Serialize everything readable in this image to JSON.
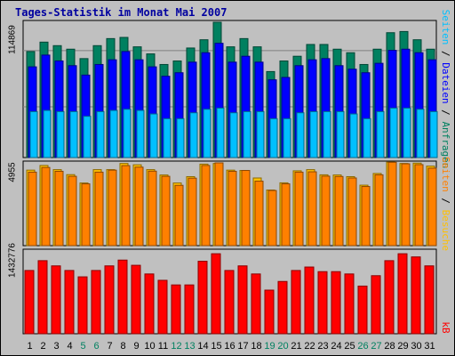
{
  "title": "Tages-Statistik im Monat Mai 2007",
  "colors": {
    "hits": "#008060",
    "files": "#0000ff",
    "pages": "#00c0ff",
    "visits": "#ffc000",
    "sites": "#ff8000",
    "kbytes": "#ff0000",
    "weekday_label": "#000000",
    "weekend_label": "#008060",
    "background": "#c0c0c0"
  },
  "legend_right": {
    "top": [
      {
        "text": "Seiten",
        "color": "#00c0ff"
      },
      {
        "text": " / ",
        "color": "#000000"
      },
      {
        "text": "Dateien",
        "color": "#0000ff"
      },
      {
        "text": " / ",
        "color": "#000000"
      },
      {
        "text": "Anfragen",
        "color": "#008060"
      }
    ],
    "middle": [
      {
        "text": "Seiten",
        "color": "#ff8000"
      },
      {
        "text": " / ",
        "color": "#000000"
      },
      {
        "text": "Besuche",
        "color": "#ffc000"
      }
    ],
    "bottom": [
      {
        "text": "kB",
        "color": "#ff0000"
      }
    ]
  },
  "chart_data": [
    {
      "type": "bar",
      "panel": "requests",
      "ymax_label": "114869",
      "ylim": [
        0,
        114869
      ],
      "categories": [
        "1",
        "2",
        "3",
        "4",
        "5",
        "6",
        "7",
        "8",
        "9",
        "10",
        "11",
        "12",
        "13",
        "14",
        "15",
        "16",
        "17",
        "18",
        "19",
        "20",
        "21",
        "22",
        "23",
        "24",
        "25",
        "26",
        "27",
        "28",
        "29",
        "30",
        "31"
      ],
      "weekend_days": [
        "5",
        "6",
        "12",
        "13",
        "19",
        "20",
        "26",
        "27"
      ],
      "series": [
        {
          "name": "Anfragen",
          "values": [
            90000,
            98000,
            95000,
            92000,
            84000,
            95000,
            101000,
            102000,
            94000,
            88000,
            79000,
            82000,
            93000,
            100000,
            114869,
            94000,
            101000,
            94000,
            73000,
            82000,
            86000,
            96000,
            96000,
            92000,
            89000,
            79000,
            92000,
            106000,
            107000,
            100000,
            92000
          ]
        },
        {
          "name": "Dateien",
          "values": [
            77000,
            87000,
            82000,
            78000,
            70000,
            79000,
            83000,
            90000,
            83000,
            77000,
            69000,
            72000,
            81000,
            89000,
            97000,
            81000,
            86000,
            81000,
            66000,
            68000,
            78000,
            83000,
            84000,
            78000,
            75000,
            72000,
            80000,
            91000,
            92000,
            89000,
            83000
          ]
        },
        {
          "name": "Seiten",
          "values": [
            39000,
            40000,
            39000,
            39000,
            35000,
            39000,
            40000,
            41000,
            40000,
            37000,
            33000,
            33000,
            38000,
            41000,
            42000,
            38000,
            39000,
            39000,
            33000,
            33000,
            38000,
            39000,
            39000,
            39000,
            37000,
            33000,
            39000,
            42000,
            42000,
            41000,
            39000
          ]
        }
      ]
    },
    {
      "type": "bar",
      "panel": "visits",
      "ymax_label": "4955",
      "ylim": [
        0,
        4955
      ],
      "categories": [
        "1",
        "2",
        "3",
        "4",
        "5",
        "6",
        "7",
        "8",
        "9",
        "10",
        "11",
        "12",
        "13",
        "14",
        "15",
        "16",
        "17",
        "18",
        "19",
        "20",
        "21",
        "22",
        "23",
        "24",
        "25",
        "26",
        "27",
        "28",
        "29",
        "30",
        "31"
      ],
      "series": [
        {
          "name": "Besuche",
          "values": [
            4520,
            4800,
            4550,
            4250,
            3750,
            4550,
            4550,
            4920,
            4840,
            4550,
            4230,
            3750,
            4130,
            4880,
            4920,
            4520,
            4500,
            4050,
            3330,
            3760,
            4480,
            4550,
            4240,
            4230,
            4130,
            3620,
            4320,
            5000,
            4920,
            4940,
            4760
          ]
        },
        {
          "name": "Seiten",
          "values": [
            4400,
            4680,
            4450,
            4150,
            3700,
            4400,
            4520,
            4790,
            4700,
            4460,
            4150,
            3610,
            4040,
            4800,
            4955,
            4450,
            4500,
            3860,
            3300,
            3700,
            4400,
            4420,
            4160,
            4140,
            4050,
            3540,
            4240,
            4990,
            4900,
            4850,
            4640
          ]
        }
      ]
    },
    {
      "type": "bar",
      "panel": "kbytes",
      "ymax_label": "1432776",
      "ylim": [
        0,
        1432776
      ],
      "categories": [
        "1",
        "2",
        "3",
        "4",
        "5",
        "6",
        "7",
        "8",
        "9",
        "10",
        "11",
        "12",
        "13",
        "14",
        "15",
        "16",
        "17",
        "18",
        "19",
        "20",
        "21",
        "22",
        "23",
        "24",
        "25",
        "26",
        "27",
        "28",
        "29",
        "30",
        "31"
      ],
      "series": [
        {
          "name": "kB",
          "values": [
            1095000,
            1265000,
            1175000,
            1095000,
            985000,
            1095000,
            1175000,
            1275000,
            1185000,
            1035000,
            925000,
            845000,
            845000,
            1255000,
            1385000,
            1095000,
            1175000,
            1035000,
            755000,
            905000,
            1095000,
            1155000,
            1075000,
            1075000,
            1035000,
            825000,
            1005000,
            1265000,
            1385000,
            1330000,
            1175000
          ]
        }
      ]
    }
  ]
}
